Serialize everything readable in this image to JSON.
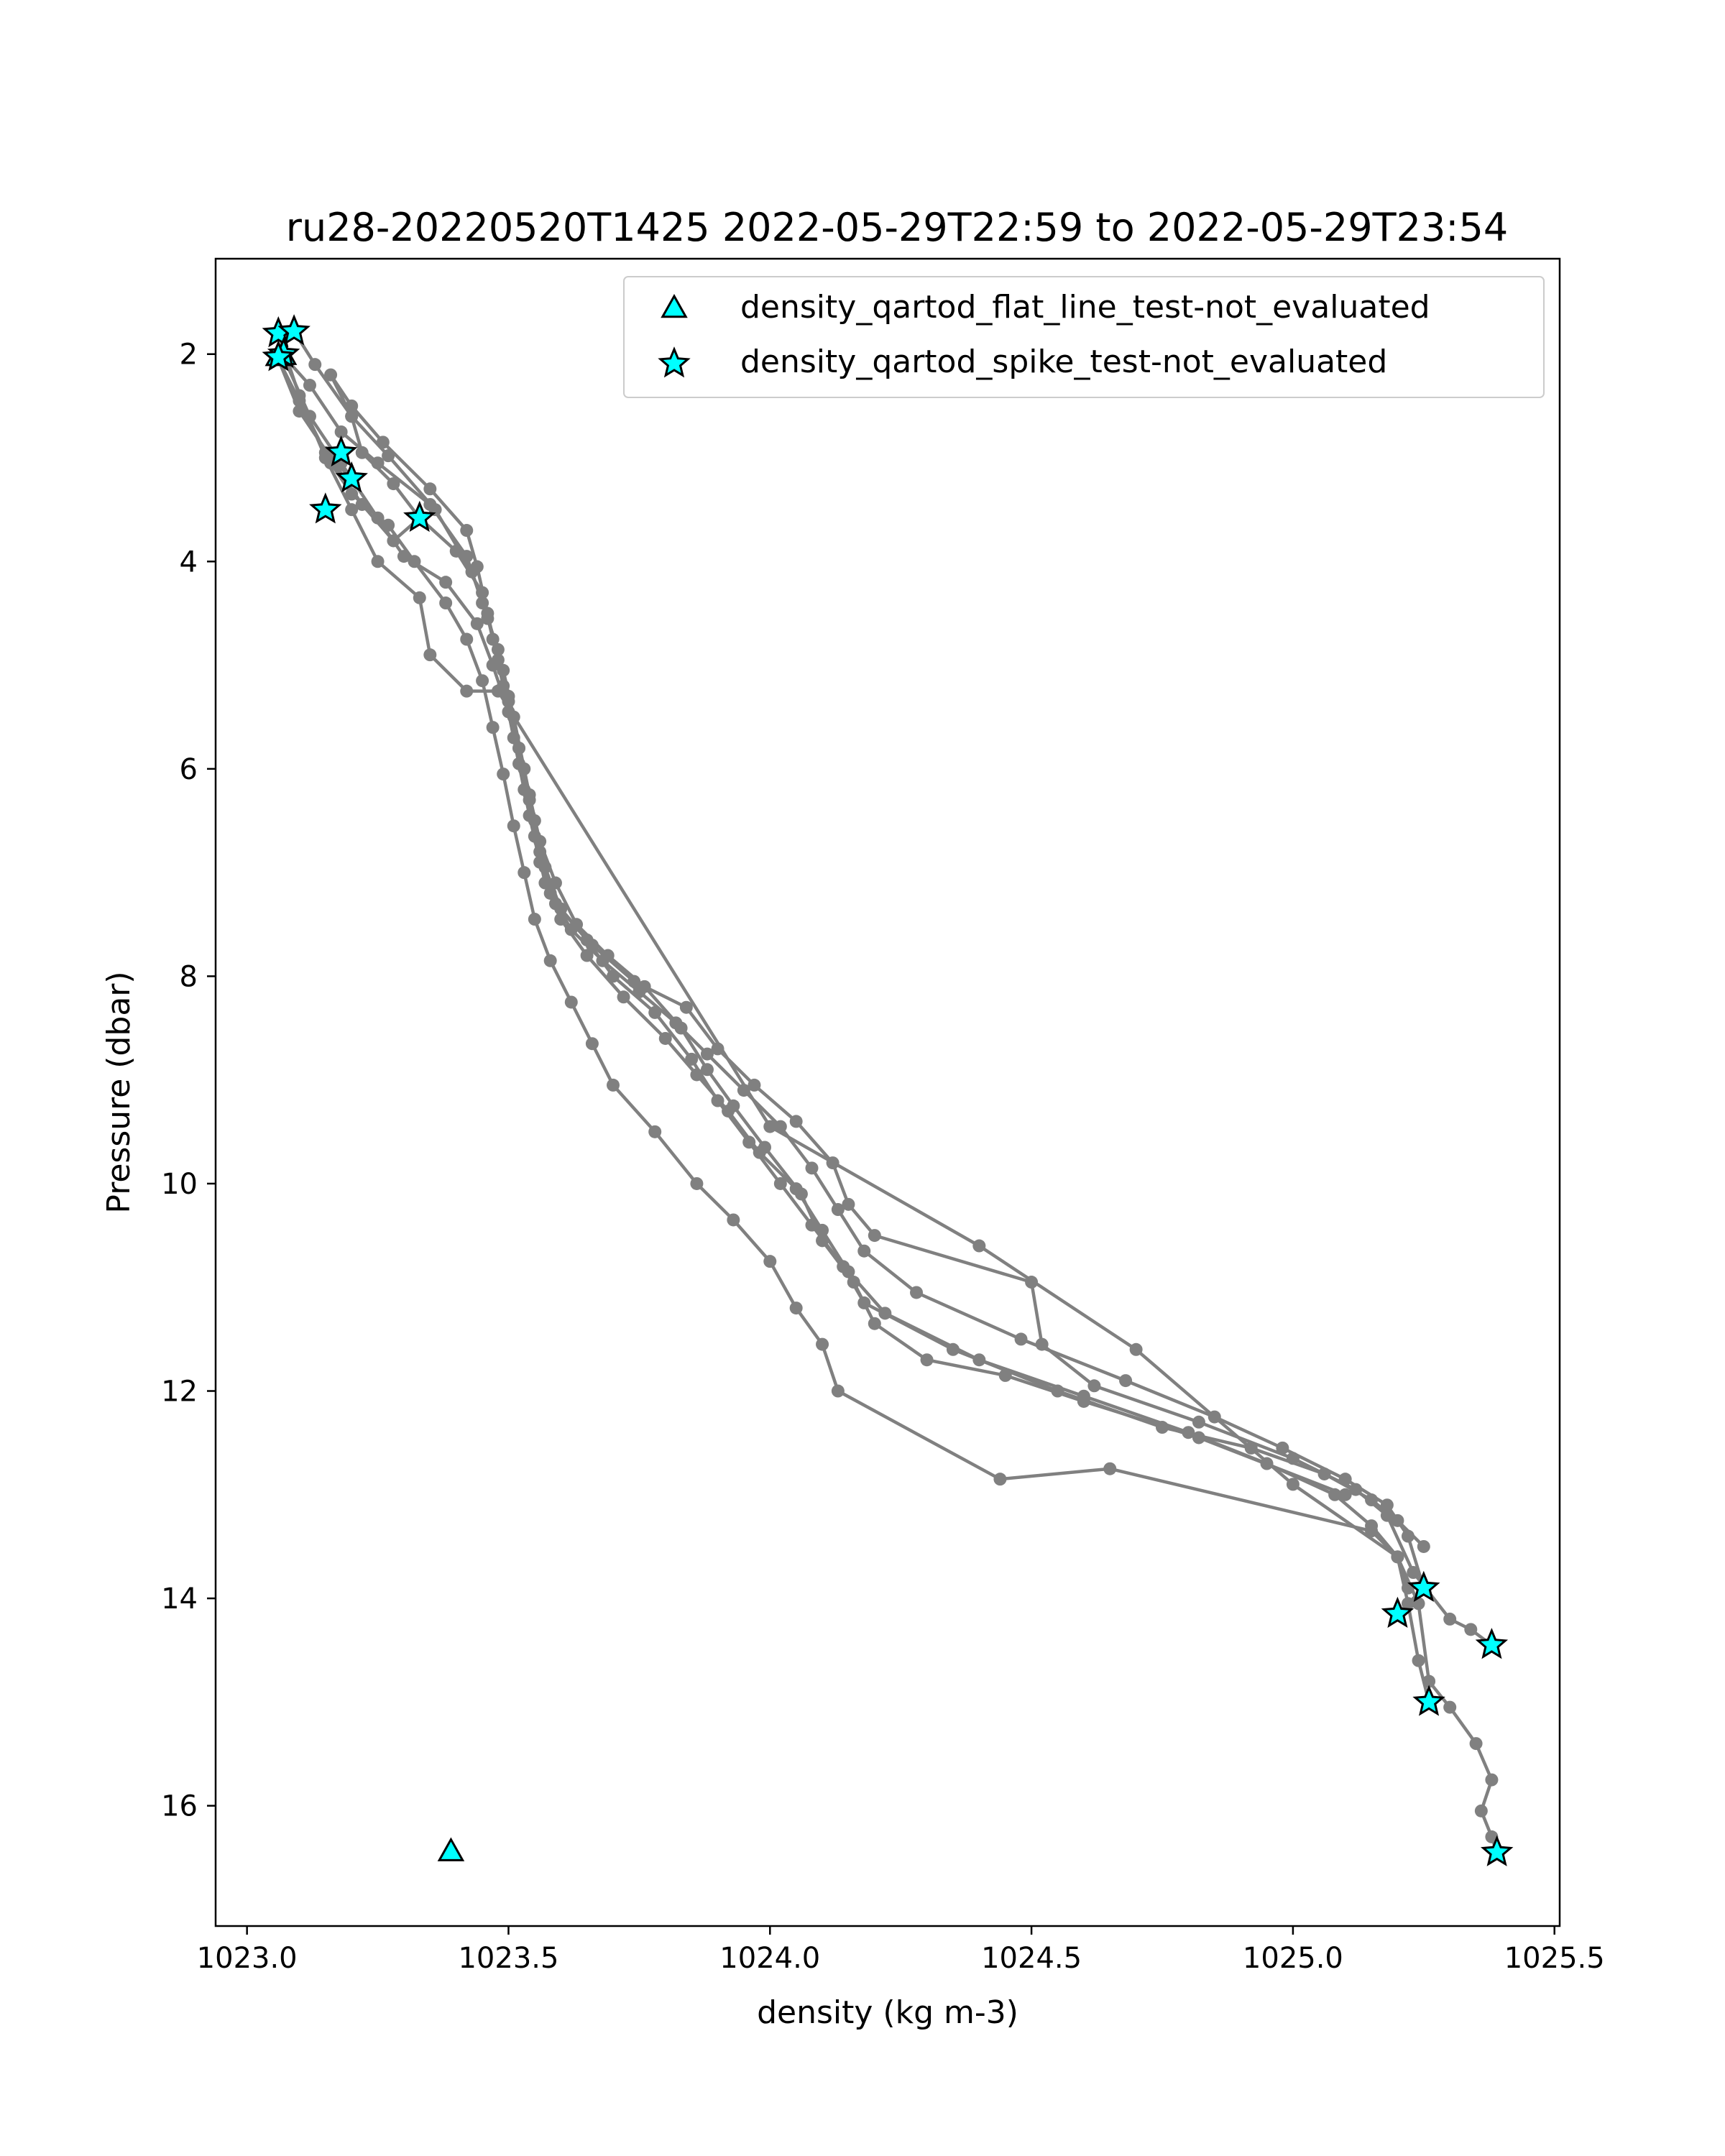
{
  "chart_data": {
    "type": "line",
    "title": "ru28-20220520T1425 2022-05-29T22:59 to 2022-05-29T23:54",
    "xlabel": "density (kg m-3)",
    "ylabel": "Pressure (dbar)",
    "xlim": [
      1022.94,
      1025.51
    ],
    "ylim": [
      17.16,
      1.08
    ],
    "y_inverted": true,
    "grid": false,
    "legend_position": "upper right",
    "x_ticks": [
      "1023.0",
      "1023.5",
      "1024.0",
      "1024.5",
      "1025.0",
      "1025.5"
    ],
    "y_ticks": [
      "2",
      "4",
      "6",
      "8",
      "10",
      "12",
      "14",
      "16"
    ],
    "line_color": "#808080",
    "marker_fill": "#00ffff",
    "series": [
      {
        "points": [
          [
            1023.07,
            2.02
          ],
          [
            1023.12,
            2.3
          ],
          [
            1023.18,
            2.75
          ],
          [
            1023.25,
            3.05
          ],
          [
            1023.35,
            3.45
          ],
          [
            1023.42,
            3.95
          ],
          [
            1023.45,
            4.4
          ],
          [
            1023.48,
            4.85
          ],
          [
            1023.5,
            5.3
          ],
          [
            1023.52,
            5.8
          ],
          [
            1023.54,
            6.3
          ],
          [
            1023.56,
            6.8
          ],
          [
            1023.58,
            7.2
          ],
          [
            1023.62,
            7.55
          ],
          [
            1023.68,
            7.85
          ],
          [
            1023.75,
            8.15
          ],
          [
            1023.82,
            8.45
          ],
          [
            1023.88,
            8.75
          ],
          [
            1023.95,
            9.1
          ],
          [
            1024.02,
            9.45
          ],
          [
            1024.08,
            9.85
          ],
          [
            1024.13,
            10.25
          ],
          [
            1024.18,
            10.65
          ],
          [
            1024.28,
            11.05
          ],
          [
            1024.48,
            11.5
          ],
          [
            1024.68,
            11.9
          ],
          [
            1024.85,
            12.25
          ],
          [
            1024.98,
            12.55
          ],
          [
            1025.1,
            12.85
          ],
          [
            1025.18,
            13.1
          ],
          [
            1025.22,
            13.4
          ],
          [
            1025.25,
            13.9
          ],
          [
            1025.2,
            14.15
          ]
        ]
      },
      {
        "points": [
          [
            1023.2,
            3.2
          ],
          [
            1023.15,
            2.95
          ],
          [
            1023.1,
            2.45
          ],
          [
            1023.06,
            2.05
          ],
          [
            1023.1,
            2.55
          ],
          [
            1023.16,
            3.0
          ],
          [
            1023.22,
            3.45
          ],
          [
            1023.28,
            3.8
          ],
          [
            1023.33,
            3.58
          ],
          [
            1023.4,
            3.9
          ],
          [
            1023.45,
            4.3
          ],
          [
            1023.47,
            4.75
          ],
          [
            1023.49,
            5.2
          ],
          [
            1023.51,
            5.7
          ],
          [
            1023.53,
            6.2
          ],
          [
            1023.55,
            6.65
          ],
          [
            1023.57,
            7.1
          ],
          [
            1023.6,
            7.45
          ],
          [
            1023.65,
            7.8
          ],
          [
            1023.72,
            8.2
          ],
          [
            1023.8,
            8.6
          ],
          [
            1023.86,
            8.95
          ],
          [
            1023.92,
            9.3
          ],
          [
            1023.98,
            9.7
          ],
          [
            1024.05,
            10.05
          ],
          [
            1024.1,
            10.45
          ],
          [
            1024.15,
            10.85
          ],
          [
            1024.22,
            11.25
          ],
          [
            1024.4,
            11.7
          ],
          [
            1024.6,
            12.05
          ],
          [
            1024.8,
            12.4
          ],
          [
            1024.95,
            12.7
          ],
          [
            1025.08,
            13.0
          ],
          [
            1025.15,
            13.3
          ],
          [
            1025.2,
            13.6
          ],
          [
            1025.22,
            14.05
          ],
          [
            1025.24,
            14.6
          ],
          [
            1025.26,
            15.0
          ]
        ]
      },
      {
        "points": [
          [
            1023.09,
            1.78
          ],
          [
            1023.13,
            2.1
          ],
          [
            1023.2,
            2.6
          ],
          [
            1023.27,
            2.98
          ],
          [
            1023.36,
            3.5
          ],
          [
            1023.43,
            4.1
          ],
          [
            1023.46,
            4.55
          ],
          [
            1023.49,
            5.05
          ],
          [
            1023.51,
            5.5
          ],
          [
            1023.53,
            6.0
          ],
          [
            1023.55,
            6.5
          ],
          [
            1023.57,
            6.95
          ],
          [
            1023.6,
            7.35
          ],
          [
            1023.66,
            7.7
          ],
          [
            1023.74,
            8.05
          ],
          [
            1023.84,
            8.3
          ],
          [
            1023.9,
            8.7
          ],
          [
            1023.97,
            9.05
          ],
          [
            1024.05,
            9.4
          ],
          [
            1024.12,
            9.8
          ],
          [
            1024.15,
            10.2
          ],
          [
            1024.2,
            10.5
          ],
          [
            1024.5,
            10.95
          ],
          [
            1024.52,
            11.55
          ],
          [
            1024.62,
            11.95
          ],
          [
            1024.82,
            12.3
          ],
          [
            1025.0,
            12.65
          ],
          [
            1025.12,
            12.95
          ],
          [
            1025.18,
            13.2
          ],
          [
            1025.23,
            13.75
          ],
          [
            1025.3,
            14.2
          ],
          [
            1025.34,
            14.3
          ],
          [
            1025.38,
            14.45
          ]
        ]
      },
      {
        "points": [
          [
            1023.06,
            1.8
          ],
          [
            1023.1,
            2.4
          ],
          [
            1023.15,
            3.0
          ],
          [
            1023.2,
            3.5
          ],
          [
            1023.25,
            4.0
          ],
          [
            1023.33,
            4.35
          ],
          [
            1023.35,
            4.9
          ],
          [
            1023.42,
            5.25
          ],
          [
            1023.48,
            5.25
          ],
          [
            1024.0,
            9.45
          ],
          [
            1024.4,
            10.6
          ],
          [
            1024.7,
            11.6
          ],
          [
            1025.0,
            12.9
          ],
          [
            1025.2,
            13.6
          ],
          [
            1025.24,
            14.05
          ],
          [
            1025.26,
            14.8
          ],
          [
            1025.3,
            15.05
          ],
          [
            1025.35,
            15.4
          ],
          [
            1025.38,
            15.75
          ],
          [
            1025.36,
            16.05
          ],
          [
            1025.38,
            16.3
          ],
          [
            1025.39,
            16.45
          ]
        ]
      },
      {
        "points": [
          [
            1023.07,
            2.03
          ],
          [
            1023.12,
            2.6
          ],
          [
            1023.18,
            3.05
          ],
          [
            1023.25,
            3.58
          ],
          [
            1023.3,
            3.95
          ],
          [
            1023.38,
            4.2
          ],
          [
            1023.44,
            4.6
          ],
          [
            1023.47,
            5.0
          ],
          [
            1023.5,
            5.45
          ],
          [
            1023.52,
            5.95
          ],
          [
            1023.54,
            6.45
          ],
          [
            1023.56,
            6.9
          ],
          [
            1023.59,
            7.3
          ],
          [
            1023.65,
            7.65
          ],
          [
            1023.7,
            8.0
          ],
          [
            1023.78,
            8.35
          ],
          [
            1023.85,
            8.8
          ],
          [
            1023.9,
            9.2
          ],
          [
            1023.96,
            9.6
          ],
          [
            1024.02,
            10.0
          ],
          [
            1024.08,
            10.4
          ],
          [
            1024.14,
            10.8
          ],
          [
            1024.18,
            11.15
          ],
          [
            1024.35,
            11.6
          ],
          [
            1024.55,
            12.0
          ],
          [
            1024.75,
            12.35
          ],
          [
            1024.92,
            12.55
          ],
          [
            1025.06,
            12.8
          ],
          [
            1025.15,
            13.05
          ],
          [
            1025.2,
            13.25
          ],
          [
            1025.25,
            13.5
          ]
        ]
      },
      {
        "points": [
          [
            1023.16,
            3.05
          ],
          [
            1023.2,
            3.35
          ],
          [
            1023.27,
            3.65
          ],
          [
            1023.32,
            4.0
          ],
          [
            1023.38,
            4.4
          ],
          [
            1023.42,
            4.75
          ],
          [
            1023.45,
            5.15
          ],
          [
            1023.47,
            5.6
          ],
          [
            1023.49,
            6.05
          ],
          [
            1023.51,
            6.55
          ],
          [
            1023.53,
            7.0
          ],
          [
            1023.55,
            7.45
          ],
          [
            1023.58,
            7.85
          ],
          [
            1023.62,
            8.25
          ],
          [
            1023.66,
            8.65
          ],
          [
            1023.7,
            9.05
          ],
          [
            1023.78,
            9.5
          ],
          [
            1023.86,
            10.0
          ],
          [
            1023.93,
            10.35
          ],
          [
            1024.0,
            10.75
          ],
          [
            1024.05,
            11.2
          ],
          [
            1024.1,
            11.55
          ],
          [
            1024.13,
            12.0
          ],
          [
            1024.44,
            12.85
          ],
          [
            1024.65,
            12.75
          ],
          [
            1025.15,
            13.35
          ],
          [
            1025.2,
            13.6
          ],
          [
            1025.22,
            13.9
          ]
        ]
      },
      {
        "points": [
          [
            1023.33,
            3.58
          ],
          [
            1023.28,
            3.25
          ],
          [
            1023.22,
            2.95
          ],
          [
            1023.2,
            2.6
          ],
          [
            1023.16,
            2.2
          ],
          [
            1023.2,
            2.5
          ],
          [
            1023.26,
            2.85
          ],
          [
            1023.35,
            3.3
          ],
          [
            1023.42,
            3.7
          ],
          [
            1023.44,
            4.05
          ],
          [
            1023.46,
            4.5
          ],
          [
            1023.48,
            4.95
          ],
          [
            1023.5,
            5.35
          ],
          [
            1023.52,
            5.8
          ],
          [
            1023.54,
            6.25
          ],
          [
            1023.56,
            6.7
          ],
          [
            1023.59,
            7.1
          ],
          [
            1023.63,
            7.5
          ],
          [
            1023.69,
            7.8
          ],
          [
            1023.76,
            8.1
          ],
          [
            1023.83,
            8.5
          ],
          [
            1023.88,
            8.9
          ],
          [
            1023.93,
            9.25
          ],
          [
            1023.99,
            9.65
          ],
          [
            1024.06,
            10.1
          ],
          [
            1024.1,
            10.55
          ],
          [
            1024.16,
            10.95
          ],
          [
            1024.2,
            11.35
          ],
          [
            1024.3,
            11.7
          ],
          [
            1024.45,
            11.85
          ],
          [
            1024.6,
            12.1
          ],
          [
            1024.82,
            12.45
          ],
          [
            1025.1,
            13.0
          ]
        ]
      }
    ],
    "flagged_series": [
      {
        "name": "density_qartod_flat_line_test-not_evaluated",
        "marker": "triangle",
        "points": [
          [
            1023.06,
            2.03
          ],
          [
            1023.07,
            2.02
          ],
          [
            1023.39,
            16.45
          ]
        ]
      },
      {
        "name": "density_qartod_spike_test-not_evaluated",
        "marker": "star",
        "points": [
          [
            1023.06,
            1.8
          ],
          [
            1023.09,
            1.78
          ],
          [
            1023.07,
            2.0
          ],
          [
            1023.06,
            2.03
          ],
          [
            1023.18,
            2.95
          ],
          [
            1023.2,
            3.2
          ],
          [
            1023.15,
            3.5
          ],
          [
            1023.33,
            3.58
          ],
          [
            1025.25,
            13.9
          ],
          [
            1025.2,
            14.15
          ],
          [
            1025.38,
            14.45
          ],
          [
            1025.26,
            15.0
          ],
          [
            1025.39,
            16.45
          ]
        ]
      }
    ]
  }
}
